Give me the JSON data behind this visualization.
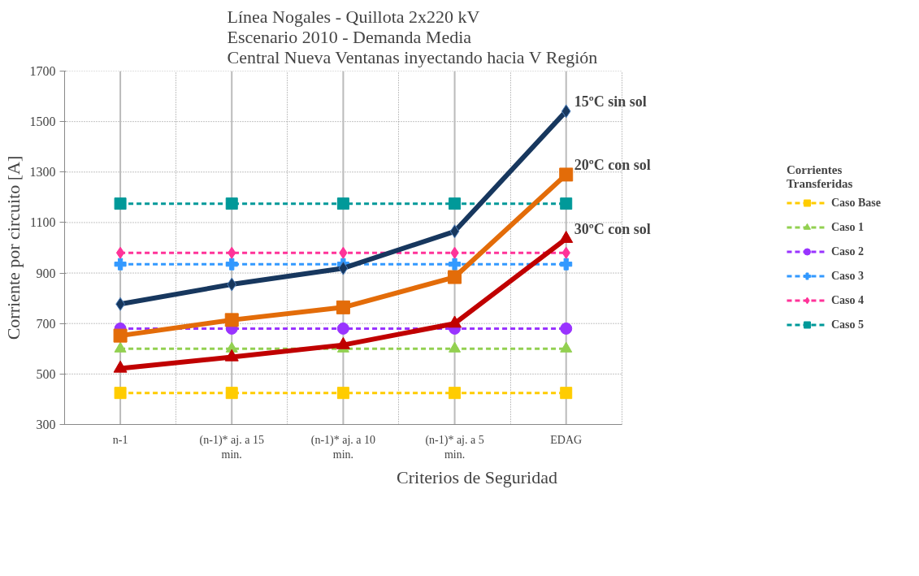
{
  "chart_data": {
    "type": "line",
    "title": "Línea Nogales - Quillota  2x220 kV\nEscenario 2010 - Demanda Media\nCentral Nueva Ventanas inyectando hacia V Región",
    "xlabel": "Criterios de Seguridad",
    "ylabel": "Corriente por circuito [A]",
    "legend_title": "Corrientes\nTransferidas",
    "categories": [
      "n-1",
      "(n-1)* aj. a 15 min.",
      "(n-1)* aj. a 10 min.",
      "(n-1)* aj. a 5 min.",
      "EDAG"
    ],
    "ylim": [
      300,
      1700
    ],
    "yticks": [
      300,
      500,
      700,
      900,
      1100,
      1300,
      1500,
      1700
    ],
    "grid": true,
    "legend": "right",
    "series": [
      {
        "name": "15ºC sin sol",
        "color": "#17375e",
        "marker": "diamond",
        "line_style": "solid",
        "values": [
          777,
          855,
          919,
          1065,
          1541
        ]
      },
      {
        "name": "20ºC con sol",
        "color": "#e36c09",
        "marker": "square",
        "line_style": "solid",
        "values": [
          652,
          714,
          764,
          884,
          1290
        ]
      },
      {
        "name": "30ºC con sol",
        "color": "#c00000",
        "marker": "triangle",
        "line_style": "solid",
        "values": [
          522,
          567,
          615,
          700,
          1036
        ]
      },
      {
        "name": "Caso Base",
        "color": "#ffcc00",
        "marker": "square",
        "line_style": "dashed",
        "values": [
          425,
          425,
          425,
          425,
          425
        ]
      },
      {
        "name": "Caso 1",
        "color": "#92d050",
        "marker": "triangle",
        "line_style": "dashed",
        "values": [
          600,
          600,
          600,
          600,
          600
        ]
      },
      {
        "name": "Caso 2",
        "color": "#9933ff",
        "marker": "circle",
        "line_style": "dashed",
        "values": [
          680,
          680,
          680,
          680,
          680
        ]
      },
      {
        "name": "Caso 3",
        "color": "#3399ff",
        "marker": "cross",
        "line_style": "dashed",
        "values": [
          935,
          935,
          935,
          935,
          935
        ]
      },
      {
        "name": "Caso 4",
        "color": "#ff3399",
        "marker": "diamond",
        "line_style": "dashed",
        "values": [
          980,
          980,
          980,
          980,
          980
        ]
      },
      {
        "name": "Caso 5",
        "color": "#009999",
        "marker": "square",
        "line_style": "dashed",
        "values": [
          1175,
          1175,
          1175,
          1175,
          1175
        ]
      }
    ]
  }
}
